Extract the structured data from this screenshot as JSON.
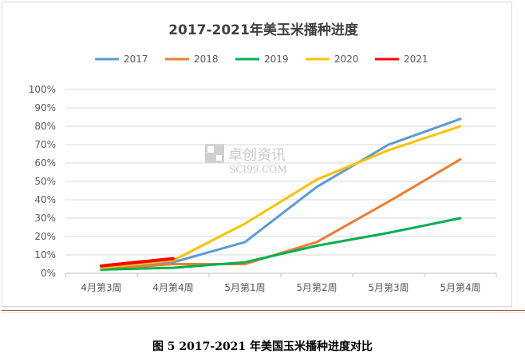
{
  "caption": "图 5   2017-2021 年美国玉米播种进度对比",
  "watermark": {
    "cn": "卓创资讯",
    "en": "SCI99.COM"
  },
  "chart_data": {
    "type": "line",
    "title": "2017-2021年美玉米播种进度",
    "xlabel": "",
    "ylabel": "",
    "categories": [
      "4月第3周",
      "4月第4周",
      "5月第1周",
      "5月第2周",
      "5月第3周",
      "5月第4周"
    ],
    "ylim": [
      0,
      100
    ],
    "yticks": [
      "0%",
      "10%",
      "20%",
      "30%",
      "40%",
      "50%",
      "60%",
      "70%",
      "80%",
      "90%",
      "100%"
    ],
    "grid": true,
    "legend_position": "top",
    "series": [
      {
        "name": "2017",
        "color": "#5b9bd5",
        "values": [
          2,
          6,
          17,
          47,
          70,
          84
        ]
      },
      {
        "name": "2018",
        "color": "#ed7d31",
        "values": [
          2,
          5,
          5,
          17,
          39,
          62
        ]
      },
      {
        "name": "2019",
        "color": "#00b050",
        "values": [
          2,
          3,
          6,
          15,
          22,
          30
        ]
      },
      {
        "name": "2020",
        "color": "#ffc000",
        "values": [
          3,
          7,
          27,
          51,
          67,
          80
        ]
      },
      {
        "name": "2021",
        "color": "#ff0000",
        "values": [
          4,
          8,
          null,
          null,
          null,
          null
        ]
      }
    ]
  }
}
